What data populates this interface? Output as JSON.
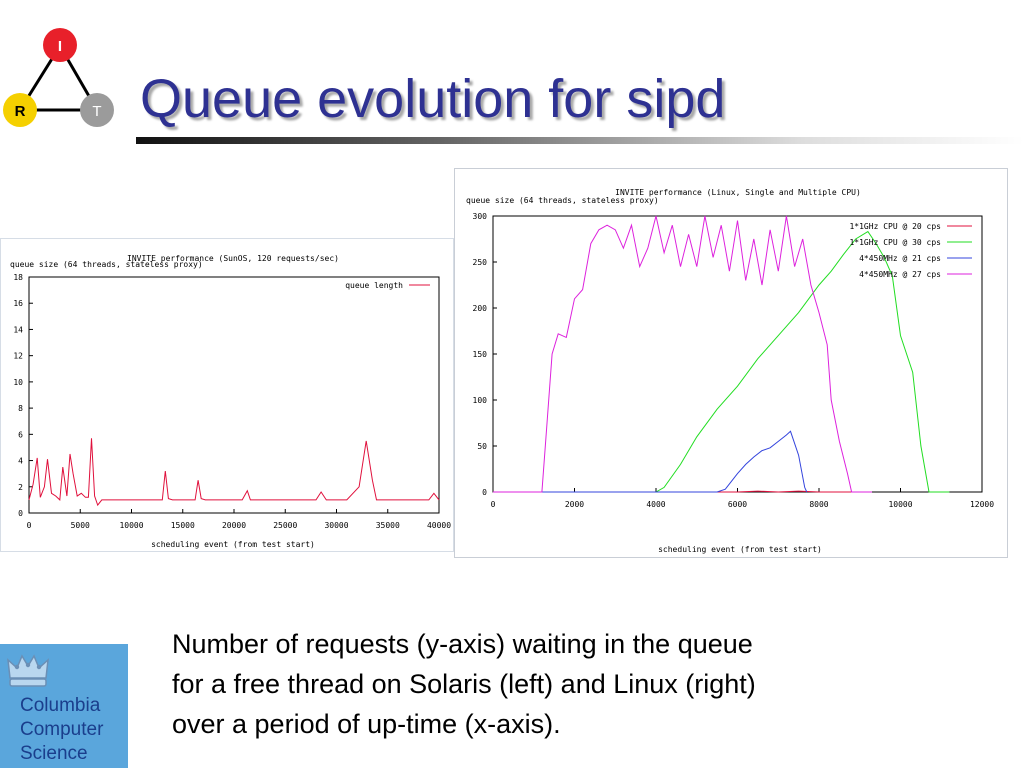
{
  "slide": {
    "title": "Queue evolution for sipd",
    "caption_lines": [
      "Number of requests (y-axis) waiting in the queue",
      "for a free thread on Solaris (left) and Linux (right)",
      "over a period of up-time (x-axis)."
    ]
  },
  "logo": {
    "labels": {
      "top": "I",
      "left": "R",
      "right": "T"
    },
    "colors": {
      "top": "#e8202a",
      "left": "#f5d000",
      "right": "#9b9b9b"
    }
  },
  "cu_logo": {
    "lines": [
      "Columbia",
      "Computer",
      "Science"
    ],
    "background": "#5aa6dc",
    "text_color": "#1a3e8c"
  },
  "colors": {
    "title": "#2e3192"
  },
  "chart_data": [
    {
      "type": "line",
      "title": "INVITE performance (SunOS, 120 requests/sec)",
      "ylabel": "queue size (64 threads, stateless proxy)",
      "xlabel": "scheduling event (from test start)",
      "xlim": [
        0,
        40000
      ],
      "ylim": [
        0,
        18
      ],
      "xticks": [
        0,
        5000,
        10000,
        15000,
        20000,
        25000,
        30000,
        35000,
        40000
      ],
      "yticks": [
        0,
        2,
        4,
        6,
        8,
        10,
        12,
        14,
        16,
        18
      ],
      "legend_position": "top-right",
      "series": [
        {
          "name": "queue length",
          "color": "#e0103c",
          "x": [
            0,
            400,
            800,
            1100,
            1500,
            1800,
            2200,
            2600,
            3000,
            3300,
            3700,
            4000,
            4300,
            4700,
            5100,
            5500,
            5800,
            6100,
            6400,
            6700,
            7100,
            8000,
            10000,
            12000,
            13000,
            13300,
            13600,
            14000,
            15000,
            16200,
            16500,
            16800,
            17200,
            19000,
            20800,
            21300,
            21600,
            22500,
            25000,
            28000,
            28500,
            29000,
            31000,
            32200,
            32900,
            33500,
            33900,
            35000,
            38000,
            39000,
            39500,
            40000
          ],
          "y": [
            1,
            2.2,
            4.2,
            1.2,
            2,
            4.1,
            1.5,
            1.3,
            1,
            3.5,
            1.3,
            4.5,
            3,
            1.3,
            1.5,
            1.2,
            1.2,
            5.7,
            1.3,
            0.6,
            1,
            1,
            1,
            1,
            1,
            3.2,
            1.1,
            1,
            1,
            1,
            2.5,
            1.1,
            1,
            1,
            1,
            1.7,
            1,
            1,
            1,
            1,
            1.6,
            1,
            1,
            2,
            5.5,
            2.5,
            1,
            1,
            1,
            1,
            1.5,
            1
          ]
        }
      ]
    },
    {
      "type": "line",
      "title": "INVITE performance (Linux, Single and Multiple CPU)",
      "ylabel": "queue size (64 threads, stateless proxy)",
      "xlabel": "scheduling event (from test start)",
      "xlim": [
        0,
        12000
      ],
      "ylim": [
        0,
        300
      ],
      "xticks": [
        0,
        2000,
        4000,
        6000,
        8000,
        10000,
        12000
      ],
      "yticks": [
        0,
        50,
        100,
        150,
        200,
        250,
        300
      ],
      "legend_position": "top-right",
      "series": [
        {
          "name": "1*1GHz CPU @ 20 cps",
          "color": "#e0103c",
          "x": [
            0,
            2000,
            4000,
            5500,
            6000,
            6500,
            7000,
            7500,
            8000,
            8500,
            9300
          ],
          "y": [
            0,
            0,
            0,
            0,
            0,
            1,
            0,
            1,
            0,
            0,
            0
          ]
        },
        {
          "name": "1*1GHz CPU @ 30 cps",
          "color": "#22dd22",
          "x": [
            0,
            4000,
            4200,
            4600,
            5000,
            5500,
            6000,
            6500,
            7000,
            7500,
            8000,
            8300,
            8600,
            8900,
            9200,
            9400,
            9600,
            9800,
            10000,
            10300,
            10500,
            10700,
            11000,
            11200
          ],
          "y": [
            0,
            0,
            5,
            30,
            60,
            90,
            115,
            145,
            170,
            195,
            225,
            240,
            258,
            275,
            283,
            270,
            255,
            235,
            170,
            130,
            50,
            0,
            0,
            0
          ]
        },
        {
          "name": "4*450MHz @ 21 cps",
          "color": "#3344dd",
          "x": [
            0,
            4000,
            5500,
            5700,
            6000,
            6200,
            6400,
            6600,
            6800,
            7000,
            7200,
            7300,
            7500,
            7650,
            7700
          ],
          "y": [
            0,
            0,
            0,
            3,
            20,
            30,
            38,
            45,
            48,
            55,
            62,
            66,
            40,
            5,
            0
          ]
        },
        {
          "name": "4*450MHz @ 27 cps",
          "color": "#dd22dd",
          "x": [
            0,
            1200,
            1300,
            1450,
            1600,
            1800,
            2000,
            2200,
            2400,
            2600,
            2800,
            3000,
            3200,
            3400,
            3600,
            3800,
            4000,
            4200,
            4400,
            4600,
            4800,
            5000,
            5200,
            5400,
            5600,
            5800,
            6000,
            6200,
            6400,
            6600,
            6800,
            7000,
            7200,
            7400,
            7600,
            7800,
            8000,
            8200,
            8300,
            8500,
            8700,
            8800,
            9300
          ],
          "y": [
            0,
            0,
            60,
            150,
            172,
            168,
            210,
            220,
            270,
            285,
            290,
            285,
            265,
            290,
            245,
            265,
            300,
            260,
            290,
            245,
            280,
            245,
            300,
            255,
            290,
            240,
            295,
            230,
            275,
            225,
            285,
            240,
            300,
            245,
            275,
            225,
            195,
            160,
            100,
            55,
            20,
            0,
            0
          ]
        }
      ]
    }
  ]
}
